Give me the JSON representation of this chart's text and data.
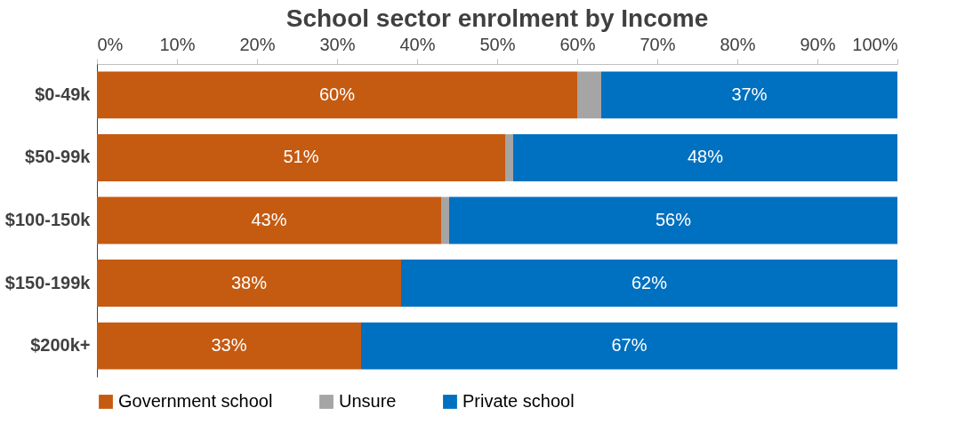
{
  "chart_data": {
    "type": "bar",
    "title": "School sector enrolment by Income",
    "orientation": "horizontal",
    "stacked": true,
    "categories": [
      "$0-49k",
      "$50-99k",
      "$100-150k",
      "$150-199k",
      "$200k+"
    ],
    "series": [
      {
        "name": "Government school",
        "color": "#c55a11",
        "values": [
          60,
          51,
          43,
          38,
          33
        ],
        "value_labels": [
          "60%",
          "51%",
          "43%",
          "38%",
          "33%"
        ]
      },
      {
        "name": "Unsure",
        "color": "#a5a5a5",
        "values": [
          3,
          1,
          1,
          0,
          0
        ],
        "value_labels": [
          null,
          null,
          null,
          null,
          null
        ]
      },
      {
        "name": "Private school",
        "color": "#0070c0",
        "values": [
          37,
          48,
          56,
          62,
          67
        ],
        "value_labels": [
          "37%",
          "48%",
          "56%",
          "62%",
          "67%"
        ]
      }
    ],
    "xlim": [
      0,
      100
    ],
    "xticks": [
      {
        "value": 0,
        "label": "0%"
      },
      {
        "value": 10,
        "label": "10%"
      },
      {
        "value": 20,
        "label": "20%"
      },
      {
        "value": 30,
        "label": "30%"
      },
      {
        "value": 40,
        "label": "40%"
      },
      {
        "value": 50,
        "label": "50%"
      },
      {
        "value": 60,
        "label": "60%"
      },
      {
        "value": 70,
        "label": "70%"
      },
      {
        "value": 80,
        "label": "80%"
      },
      {
        "value": 90,
        "label": "90%"
      },
      {
        "value": 100,
        "label": "100%"
      }
    ],
    "grid": false,
    "legend": "bottom"
  }
}
